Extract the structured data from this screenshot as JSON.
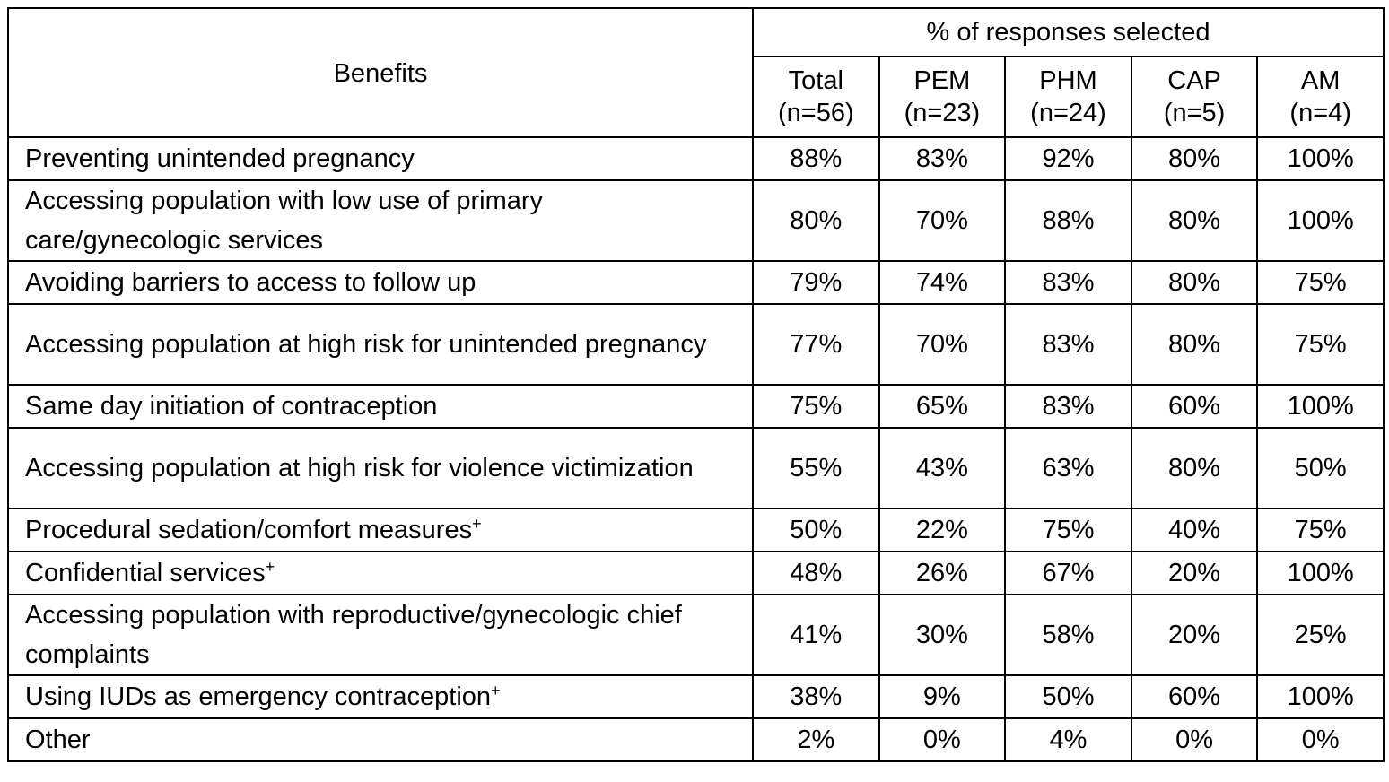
{
  "table": {
    "header": {
      "benefits_label": "Benefits",
      "group_label": "% of responses selected",
      "columns": [
        {
          "name": "Total",
          "n": "(n=56)"
        },
        {
          "name": "PEM",
          "n": "(n=23)"
        },
        {
          "name": "PHM",
          "n": "(n=24)"
        },
        {
          "name": "CAP",
          "n": "(n=5)"
        },
        {
          "name": "AM",
          "n": "(n=4)"
        }
      ]
    },
    "rows": [
      {
        "benefit": "Preventing unintended pregnancy",
        "superscript": "",
        "lines": 1,
        "values": [
          "88%",
          "83%",
          "92%",
          "80%",
          "100%"
        ]
      },
      {
        "benefit": "Accessing population with low use of primary care/gynecologic services",
        "superscript": "",
        "lines": 2,
        "values": [
          "80%",
          "70%",
          "88%",
          "80%",
          "100%"
        ]
      },
      {
        "benefit": "Avoiding barriers to access to follow up",
        "superscript": "",
        "lines": 1,
        "values": [
          "79%",
          "74%",
          "83%",
          "80%",
          "75%"
        ]
      },
      {
        "benefit": "Accessing population at high risk for unintended pregnancy",
        "superscript": "",
        "lines": 2,
        "values": [
          "77%",
          "70%",
          "83%",
          "80%",
          "75%"
        ]
      },
      {
        "benefit": "Same day initiation of contraception",
        "superscript": "",
        "lines": 1,
        "values": [
          "75%",
          "65%",
          "83%",
          "60%",
          "100%"
        ]
      },
      {
        "benefit": "Accessing population at high risk for violence victimization",
        "superscript": "",
        "lines": 2,
        "values": [
          "55%",
          "43%",
          "63%",
          "80%",
          "50%"
        ]
      },
      {
        "benefit": "Procedural sedation/comfort measures",
        "superscript": "+",
        "lines": 1,
        "values": [
          "50%",
          "22%",
          "75%",
          "40%",
          "75%"
        ]
      },
      {
        "benefit": "Confidential services",
        "superscript": "+",
        "lines": 1,
        "values": [
          "48%",
          "26%",
          "67%",
          "20%",
          "100%"
        ]
      },
      {
        "benefit": "Accessing population with reproductive/gynecologic chief complaints",
        "superscript": "",
        "lines": 2,
        "values": [
          "41%",
          "30%",
          "58%",
          "20%",
          "25%"
        ]
      },
      {
        "benefit": "Using IUDs as emergency contraception",
        "superscript": "+",
        "lines": 1,
        "values": [
          "38%",
          "9%",
          "50%",
          "60%",
          "100%"
        ]
      },
      {
        "benefit": "Other",
        "superscript": "",
        "lines": 1,
        "values": [
          "2%",
          "0%",
          "4%",
          "0%",
          "0%"
        ]
      }
    ]
  }
}
